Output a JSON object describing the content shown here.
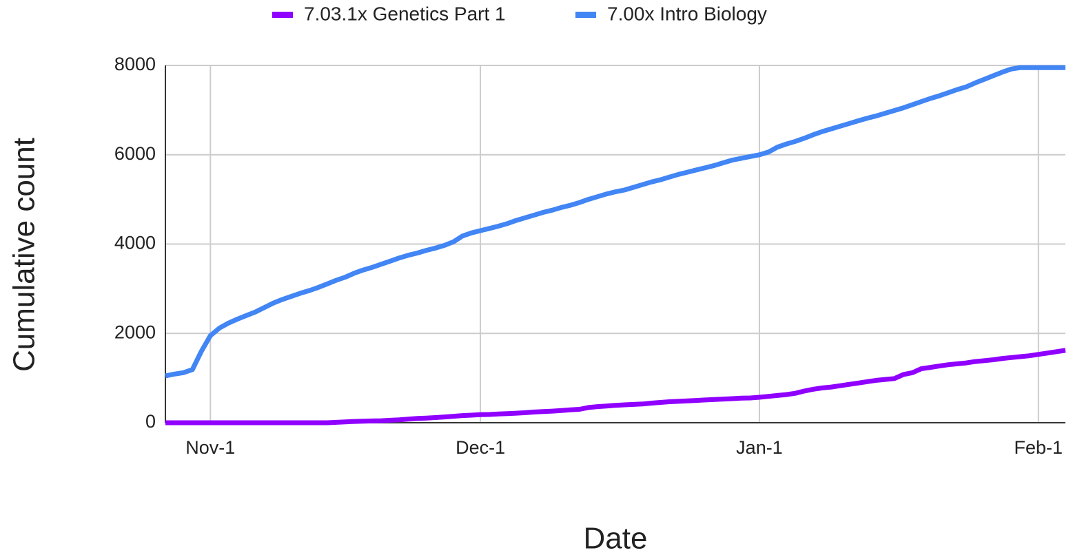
{
  "chart_data": {
    "type": "line",
    "x_label": "Date",
    "y_label": "Cumulative count",
    "x": [
      "Oct-27",
      "Oct-28",
      "Oct-29",
      "Oct-30",
      "Oct-31",
      "Nov-1",
      "Nov-2",
      "Nov-3",
      "Nov-4",
      "Nov-5",
      "Nov-6",
      "Nov-7",
      "Nov-8",
      "Nov-9",
      "Nov-10",
      "Nov-11",
      "Nov-12",
      "Nov-13",
      "Nov-14",
      "Nov-15",
      "Nov-16",
      "Nov-17",
      "Nov-18",
      "Nov-19",
      "Nov-20",
      "Nov-21",
      "Nov-22",
      "Nov-23",
      "Nov-24",
      "Nov-25",
      "Nov-26",
      "Nov-27",
      "Nov-28",
      "Nov-29",
      "Nov-30",
      "Dec-1",
      "Dec-2",
      "Dec-3",
      "Dec-4",
      "Dec-5",
      "Dec-6",
      "Dec-7",
      "Dec-8",
      "Dec-9",
      "Dec-10",
      "Dec-11",
      "Dec-12",
      "Dec-13",
      "Dec-14",
      "Dec-15",
      "Dec-16",
      "Dec-17",
      "Dec-18",
      "Dec-19",
      "Dec-20",
      "Dec-21",
      "Dec-22",
      "Dec-23",
      "Dec-24",
      "Dec-25",
      "Dec-26",
      "Dec-27",
      "Dec-28",
      "Dec-29",
      "Dec-30",
      "Dec-31",
      "Jan-1",
      "Jan-2",
      "Jan-3",
      "Jan-4",
      "Jan-5",
      "Jan-6",
      "Jan-7",
      "Jan-8",
      "Jan-9",
      "Jan-10",
      "Jan-11",
      "Jan-12",
      "Jan-13",
      "Jan-14",
      "Jan-15",
      "Jan-16",
      "Jan-17",
      "Jan-18",
      "Jan-19",
      "Jan-20",
      "Jan-21",
      "Jan-22",
      "Jan-23",
      "Jan-24",
      "Jan-25",
      "Jan-26",
      "Jan-27",
      "Jan-28",
      "Jan-29",
      "Jan-30",
      "Jan-31",
      "Feb-1",
      "Feb-2",
      "Feb-3",
      "Feb-4"
    ],
    "xticks": [
      "Nov-1",
      "Dec-1",
      "Jan-1",
      "Feb-1"
    ],
    "series": [
      {
        "name": "7.03.1x Genetics Part 1",
        "color": "#8f00ff",
        "values": [
          0,
          0,
          0,
          0,
          0,
          0,
          0,
          0,
          0,
          0,
          0,
          0,
          0,
          0,
          0,
          0,
          0,
          0,
          0,
          10,
          20,
          30,
          35,
          40,
          45,
          55,
          65,
          80,
          95,
          105,
          115,
          130,
          145,
          160,
          170,
          180,
          185,
          195,
          205,
          215,
          225,
          240,
          250,
          260,
          275,
          290,
          300,
          340,
          360,
          375,
          390,
          400,
          410,
          420,
          440,
          455,
          470,
          480,
          490,
          500,
          510,
          520,
          530,
          540,
          550,
          555,
          570,
          590,
          610,
          630,
          660,
          710,
          750,
          780,
          800,
          830,
          860,
          890,
          920,
          950,
          970,
          990,
          1080,
          1120,
          1210,
          1240,
          1270,
          1300,
          1320,
          1340,
          1370,
          1390,
          1410,
          1440,
          1460,
          1480,
          1500,
          1530,
          1560,
          1590,
          1620
        ]
      },
      {
        "name": "7.00x Intro Biology",
        "color": "#4285f4",
        "values": [
          1050,
          1090,
          1120,
          1190,
          1600,
          1950,
          2120,
          2230,
          2320,
          2400,
          2480,
          2580,
          2680,
          2760,
          2830,
          2900,
          2960,
          3030,
          3110,
          3190,
          3260,
          3350,
          3420,
          3480,
          3550,
          3620,
          3690,
          3750,
          3800,
          3860,
          3910,
          3970,
          4050,
          4180,
          4250,
          4300,
          4350,
          4400,
          4460,
          4530,
          4590,
          4650,
          4710,
          4760,
          4820,
          4870,
          4930,
          5000,
          5060,
          5120,
          5170,
          5210,
          5270,
          5330,
          5390,
          5440,
          5500,
          5560,
          5610,
          5660,
          5710,
          5760,
          5820,
          5880,
          5920,
          5960,
          6000,
          6060,
          6170,
          6240,
          6300,
          6370,
          6450,
          6520,
          6580,
          6640,
          6700,
          6760,
          6820,
          6870,
          6930,
          6990,
          7050,
          7120,
          7190,
          7260,
          7320,
          7390,
          7460,
          7520,
          7610,
          7690,
          7770,
          7850,
          7920,
          7950,
          7950,
          7950,
          7950,
          7950,
          7950
        ]
      }
    ],
    "ylim": [
      0,
      8000
    ],
    "yticks": [
      0,
      2000,
      4000,
      6000,
      8000
    ],
    "grid": true,
    "legend": "top"
  }
}
